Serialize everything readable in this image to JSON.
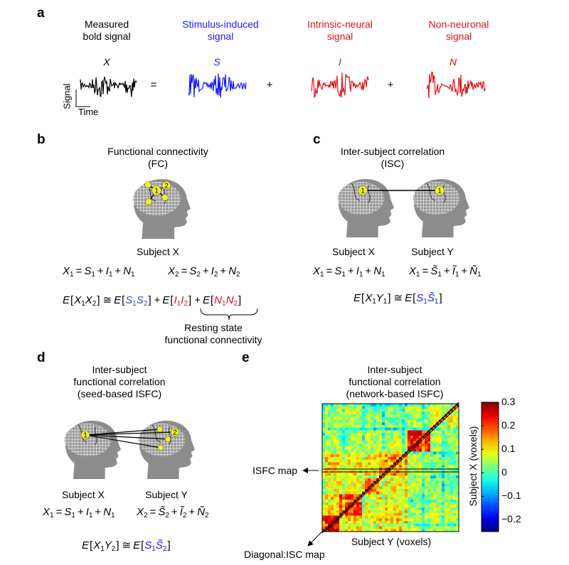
{
  "panel_a": {
    "label": "a",
    "columns": [
      {
        "title": "Measured\nbold signal",
        "symbol": "X",
        "color": "#000000"
      },
      {
        "title": "Stimulus-induced\nsignal",
        "symbol": "S",
        "color": "#1a1aff"
      },
      {
        "title": "Intrinsic-neural\nsignal",
        "symbol": "I",
        "color": "#e0121c"
      },
      {
        "title": "Non-neuronal\nsignal",
        "symbol": "N",
        "color": "#e0121c"
      }
    ],
    "operators": [
      "=",
      "+",
      "+"
    ],
    "y_axis_label": "Signal",
    "x_axis_label": "Time"
  },
  "panel_b": {
    "label": "b",
    "title": "Functional connectivity\n(FC)",
    "subject": "Subject X",
    "nodes": [
      "1",
      "2"
    ],
    "eq1": [
      {
        "b": "X",
        "s": "1"
      },
      {
        "o": "="
      },
      {
        "b": "S",
        "s": "1"
      },
      {
        "o": "+"
      },
      {
        "b": "I",
        "s": "1"
      },
      {
        "o": "+"
      },
      {
        "b": "N",
        "s": "1"
      }
    ],
    "eq2": [
      {
        "b": "X",
        "s": "2"
      },
      {
        "o": "="
      },
      {
        "b": "S",
        "s": "2"
      },
      {
        "o": "+"
      },
      {
        "b": "I",
        "s": "2"
      },
      {
        "o": "+"
      },
      {
        "b": "N",
        "s": "2"
      }
    ],
    "eq3": [
      {
        "b": "E"
      },
      {
        "o": "["
      },
      {
        "b": "X",
        "s": "1"
      },
      {
        "b": "X",
        "s": "2"
      },
      {
        "o": "]"
      },
      {
        "o": "≅"
      },
      {
        "b": "E"
      },
      {
        "o": "["
      },
      {
        "b": "S",
        "s": "1",
        "c": "#4a4ab8"
      },
      {
        "b": "S",
        "s": "2",
        "c": "#4a4ab8"
      },
      {
        "o": "]"
      },
      {
        "o": "+"
      },
      {
        "b": "E"
      },
      {
        "o": "["
      },
      {
        "b": "I",
        "s": "1",
        "c": "#e0121c"
      },
      {
        "b": "I",
        "s": "2",
        "c": "#e0121c"
      },
      {
        "o": "]"
      },
      {
        "o": "+"
      },
      {
        "b": "E"
      },
      {
        "o": "["
      },
      {
        "b": "N",
        "s": "1",
        "c": "#e0121c"
      },
      {
        "b": "N",
        "s": "2",
        "c": "#e0121c"
      },
      {
        "o": "]"
      }
    ],
    "brace_label": "Resting state\nfunctional connectivity"
  },
  "panel_c": {
    "label": "c",
    "title": "Inter-subject correlation\n(ISC)",
    "subjects": [
      "Subject X",
      "Subject Y"
    ],
    "nodes": [
      "1",
      "1"
    ],
    "eq1": [
      {
        "b": "X",
        "s": "1"
      },
      {
        "o": "="
      },
      {
        "b": "S",
        "s": "1"
      },
      {
        "o": "+"
      },
      {
        "b": "I",
        "s": "1"
      },
      {
        "o": "+"
      },
      {
        "b": "N",
        "s": "1"
      }
    ],
    "eq2": [
      {
        "b": "X",
        "s": "1"
      },
      {
        "o": "="
      },
      {
        "b": "S",
        "s": "1",
        "t": true
      },
      {
        "o": "+"
      },
      {
        "b": "I",
        "s": "1",
        "t": true
      },
      {
        "o": "+"
      },
      {
        "b": "N",
        "s": "1",
        "t": true
      }
    ],
    "eq3": [
      {
        "b": "E"
      },
      {
        "o": "["
      },
      {
        "b": "X",
        "s": "1"
      },
      {
        "b": "Y",
        "s": "1"
      },
      {
        "o": "]"
      },
      {
        "o": "≅"
      },
      {
        "b": "E"
      },
      {
        "o": "["
      },
      {
        "b": "S",
        "s": "1",
        "c": "#1a1aff"
      },
      {
        "b": "S",
        "s": "1",
        "t": true,
        "c": "#1a1aff"
      },
      {
        "o": "]"
      }
    ]
  },
  "panel_d": {
    "label": "d",
    "title": "Inter-subject\nfunctional correlation\n(seed-based ISFC)",
    "subjects": [
      "Subject X",
      "Subject Y"
    ],
    "nodes": [
      "1",
      "2"
    ],
    "eq1": [
      {
        "b": "X",
        "s": "1"
      },
      {
        "o": "="
      },
      {
        "b": "S",
        "s": "1"
      },
      {
        "o": "+"
      },
      {
        "b": "I",
        "s": "1"
      },
      {
        "o": "+"
      },
      {
        "b": "N",
        "s": "1"
      }
    ],
    "eq2": [
      {
        "b": "X",
        "s": "2"
      },
      {
        "o": "="
      },
      {
        "b": "S",
        "s": "2",
        "t": true
      },
      {
        "o": "+"
      },
      {
        "b": "I",
        "s": "2",
        "t": true
      },
      {
        "o": "+"
      },
      {
        "b": "N",
        "s": "2",
        "t": true
      }
    ],
    "eq3": [
      {
        "b": "E"
      },
      {
        "o": "["
      },
      {
        "b": "X",
        "s": "1"
      },
      {
        "b": "Y",
        "s": "2"
      },
      {
        "o": "]"
      },
      {
        "o": "≅"
      },
      {
        "b": "E"
      },
      {
        "o": "["
      },
      {
        "b": "S",
        "s": "1",
        "c": "#1a1aff"
      },
      {
        "b": "S",
        "s": "2",
        "t": true,
        "c": "#1a1aff"
      },
      {
        "o": "]"
      }
    ]
  },
  "panel_e": {
    "label": "e",
    "title": "Inter-subject\nfunctional correlation\n(network-based ISFC)",
    "xlabel": "Subject Y (voxels)",
    "ylabel": "Subject X (voxels)",
    "isfc_annotation": "ISFC map",
    "diag_annotation": "Diagonal:ISC map",
    "colorbar": {
      "min": -0.25,
      "max": 0.3,
      "ticks": [
        "0.3",
        "0.2",
        "0.1",
        "0",
        "−0.1",
        "−0.2"
      ],
      "tick_values": [
        0.3,
        0.2,
        0.1,
        0,
        -0.1,
        -0.2
      ],
      "colormap": "jet"
    }
  }
}
